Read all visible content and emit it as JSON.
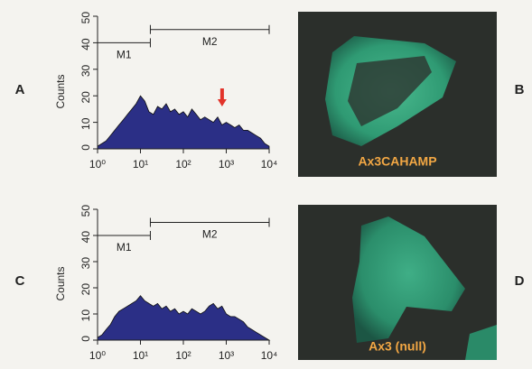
{
  "chart_data": [
    {
      "type": "area",
      "panel_label": "A",
      "y_label": "Counts",
      "xlog": true,
      "xlim": [
        1,
        10000
      ],
      "ylim": [
        0,
        50
      ],
      "xticks": [
        {
          "value": 1,
          "label": "10⁰"
        },
        {
          "value": 10,
          "label": "10¹"
        },
        {
          "value": 100,
          "label": "10²"
        },
        {
          "value": 1000,
          "label": "10³"
        },
        {
          "value": 10000,
          "label": "10⁴"
        }
      ],
      "yticks": [
        0,
        10,
        20,
        30,
        40,
        50
      ],
      "color": "#2b2f86",
      "x": [
        1,
        1.26,
        1.58,
        2,
        2.51,
        3.16,
        3.98,
        5.01,
        6.31,
        7.94,
        10,
        12.6,
        15.8,
        20,
        25.1,
        31.6,
        39.8,
        50.1,
        63.1,
        79.4,
        100,
        126,
        158,
        200,
        251,
        316,
        398,
        501,
        631,
        794,
        1000,
        1260,
        1580,
        2000,
        2510,
        3160,
        3980,
        5010,
        6310,
        7940,
        10000
      ],
      "values": [
        1,
        2,
        3,
        5,
        7,
        9,
        11,
        13,
        15,
        17,
        20,
        18,
        14,
        13,
        16,
        15,
        17,
        14,
        15,
        13,
        14,
        12,
        15,
        13,
        11,
        12,
        11,
        10,
        12,
        9,
        10,
        9,
        8,
        9,
        7,
        7,
        6,
        5,
        4,
        2,
        1
      ],
      "markers": [
        {
          "label": "M1",
          "range": [
            1,
            17
          ],
          "y": 40
        },
        {
          "label": "M2",
          "range": [
            17,
            10000
          ],
          "y": 45
        }
      ],
      "arrow": {
        "x": 800,
        "y": 16,
        "color": "#e2332a"
      }
    },
    {
      "type": "area",
      "panel_label": "C",
      "y_label": "Counts",
      "xlog": true,
      "xlim": [
        1,
        10000
      ],
      "ylim": [
        0,
        50
      ],
      "xticks": [
        {
          "value": 1,
          "label": "10⁰"
        },
        {
          "value": 10,
          "label": "10¹"
        },
        {
          "value": 100,
          "label": "10²"
        },
        {
          "value": 1000,
          "label": "10³"
        },
        {
          "value": 10000,
          "label": "10⁴"
        }
      ],
      "yticks": [
        0,
        10,
        20,
        30,
        40,
        50
      ],
      "color": "#2b2f86",
      "x": [
        1,
        1.26,
        1.58,
        2,
        2.51,
        3.16,
        3.98,
        5.01,
        6.31,
        7.94,
        10,
        12.6,
        15.8,
        20,
        25.1,
        31.6,
        39.8,
        50.1,
        63.1,
        79.4,
        100,
        126,
        158,
        200,
        251,
        316,
        398,
        501,
        631,
        794,
        1000,
        1260,
        1580,
        2000,
        2510,
        3160,
        3980,
        5010,
        6310,
        7940,
        10000
      ],
      "values": [
        1,
        2,
        4,
        6,
        9,
        11,
        12,
        13,
        14,
        15,
        17,
        15,
        14,
        13,
        14,
        12,
        13,
        11,
        12,
        10,
        11,
        10,
        12,
        11,
        10,
        11,
        13,
        14,
        12,
        13,
        10,
        9,
        9,
        8,
        7,
        5,
        4,
        3,
        2,
        1,
        0
      ],
      "markers": [
        {
          "label": "M1",
          "range": [
            1,
            17
          ],
          "y": 40
        },
        {
          "label": "M2",
          "range": [
            17,
            10000
          ],
          "y": 45
        }
      ]
    }
  ],
  "images": [
    {
      "panel_label": "B",
      "caption": "Ax3CAHAMP"
    },
    {
      "panel_label": "D",
      "caption": "Ax3 (null)"
    }
  ]
}
